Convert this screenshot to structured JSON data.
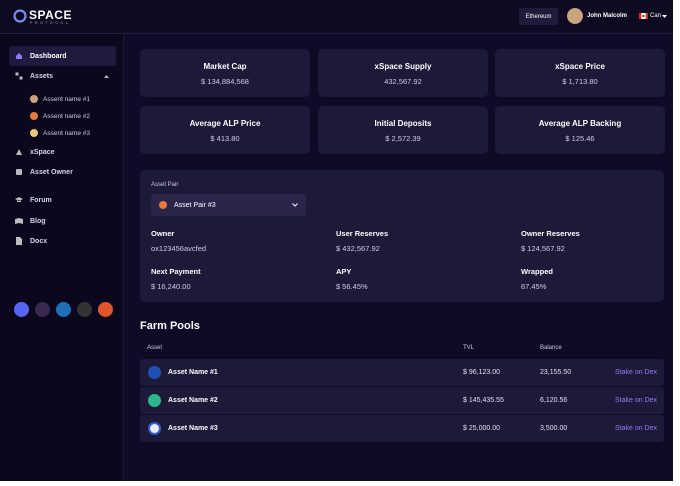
{
  "header": {
    "logo": "SPACE",
    "logo_sub": "PROTOCOL",
    "network": "Ethereum",
    "user": "John Malcolm",
    "currency": "Can"
  },
  "sidebar": {
    "main": [
      "Dashboard",
      "Assets"
    ],
    "assets": [
      "Assent name #1",
      "Assent name #2",
      "Assent name #3"
    ],
    "more": [
      "xSpace",
      "Asset Owner"
    ],
    "resources": [
      "Forum",
      "Blog",
      "Docx"
    ]
  },
  "stats": [
    {
      "label": "Market Cap",
      "value": "$ 134,884,568"
    },
    {
      "label": "xSpace Supply",
      "value": "432,567.92"
    },
    {
      "label": "xSpace Price",
      "value": "$ 1,713.80"
    },
    {
      "label": "Average ALP Price",
      "value": "$ 413.80"
    },
    {
      "label": "Initial Deposits",
      "value": "$ 2,572.39"
    },
    {
      "label": "Average ALP Backing",
      "value": "$ 125.46"
    }
  ],
  "panel": {
    "label": "Asset Pair",
    "selected": "Asset Pair #3",
    "fields": [
      {
        "label": "Owner",
        "value": "ox123456avcfed"
      },
      {
        "label": "User Reserves",
        "value": "$ 432,567.92"
      },
      {
        "label": "Owner Reserves",
        "value": "$ 124,567.92"
      },
      {
        "label": "Next Payment",
        "value": "$ 16,240.00"
      },
      {
        "label": "APY",
        "value": "$ 56.45%"
      },
      {
        "label": "Wrapped",
        "value": "67.45%"
      }
    ]
  },
  "farm": {
    "title": "Farm Pools",
    "columns": [
      "Asset",
      "TVL",
      "Balance"
    ],
    "rows": [
      {
        "asset": "Asset Name #1",
        "tvl": "$ 96,123.00",
        "balance": "23,155.50",
        "action": "Stake on Dex"
      },
      {
        "asset": "Asset Name #2",
        "tvl": "$ 145,435.55",
        "balance": "6,120.56",
        "action": "Stake on Dex"
      },
      {
        "asset": "Asset Name #3",
        "tvl": "$ 25,000.00",
        "balance": "3,500.00",
        "action": "Stake on Dex"
      }
    ]
  }
}
